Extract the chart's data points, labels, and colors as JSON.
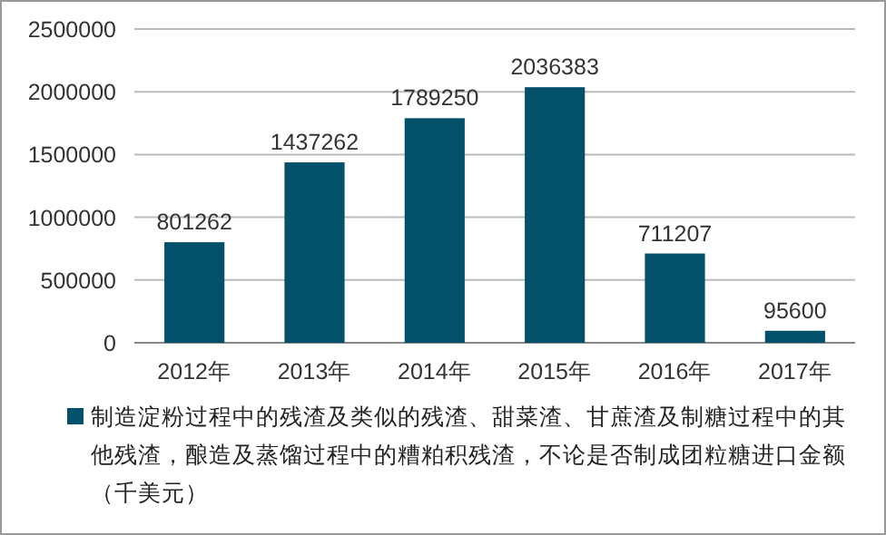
{
  "chart_data": {
    "type": "bar",
    "categories": [
      "2012年",
      "2013年",
      "2014年",
      "2015年",
      "2016年",
      "2017年"
    ],
    "series": [
      {
        "name": "制造淀粉过程中的残渣及类似的残渣、甜菜渣、甘蔗渣及制糖过程中的其他残渣，酿造及蒸馏过程中的糟粕积残渣，不论是否制成团粒糖进口金额（千美元）",
        "color": "#03506a",
        "values": [
          801262,
          1437262,
          1789250,
          2036383,
          711207,
          95600
        ]
      }
    ],
    "ylim": [
      0,
      2500000
    ],
    "yticks": [
      0,
      500000,
      1000000,
      1500000,
      2000000,
      2500000
    ],
    "grid": "y",
    "data_labels": true,
    "legend": "bottom"
  }
}
